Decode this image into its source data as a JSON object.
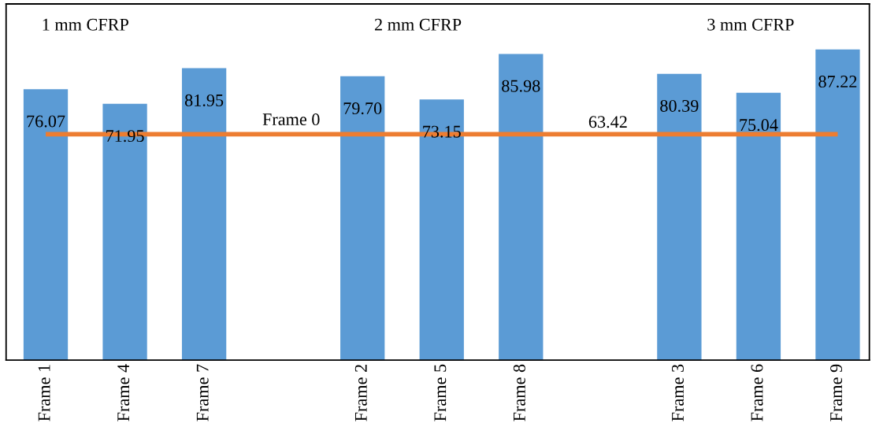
{
  "chart_data": {
    "type": "bar",
    "categories": [
      "Frame 1",
      "Frame 4",
      "Frame 7",
      null,
      "Frame 2",
      "Frame 5",
      "Frame 8",
      null,
      "Frame 3",
      "Frame 6",
      "Frame 9"
    ],
    "values": [
      76.07,
      71.95,
      81.95,
      null,
      79.7,
      73.15,
      85.98,
      null,
      80.39,
      75.04,
      87.22
    ],
    "value_labels": [
      "76.07",
      "71.95",
      "81.95",
      null,
      "79.70",
      "73.15",
      "85.98",
      null,
      "80.39",
      "75.04",
      "87.22"
    ],
    "color": "#5b9bd5",
    "ylim": [
      0,
      100
    ],
    "tick_labels": "x",
    "ref_lines": [
      {
        "axis": "y",
        "value": 63.42,
        "label": "Frame 0",
        "color": "#ed7d31"
      }
    ],
    "annotations": [
      "1 mm CFRP",
      "2 mm CFRP",
      "3 mm CFRP",
      {
        "text": "63.42",
        "y": 63.42
      }
    ]
  }
}
